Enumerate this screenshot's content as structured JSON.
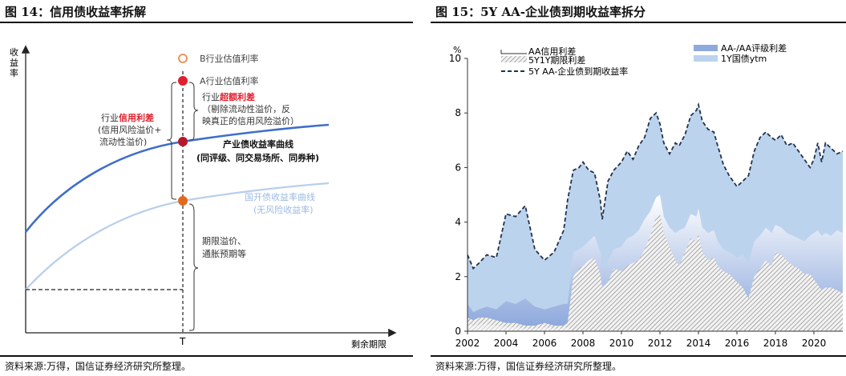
{
  "left": {
    "title": "图 14：信用债收益率拆解",
    "source": "资料来源:万得，国信证券经济研究所整理。",
    "ylabel_chars": [
      "收",
      "益",
      "率"
    ],
    "xlabel": "剩余期限",
    "t_label": "T",
    "legend_b": "B行业估值利率",
    "legend_a": "A行业估值利率",
    "excess_pre": "行业",
    "excess_em": "超额利差",
    "excess_l2": "（剔除流动性溢价，反",
    "excess_l3": "映真正的信用风险溢价）",
    "credit_pre": "行业",
    "credit_em": "信用利差",
    "credit_l2": "(信用风险溢价+",
    "credit_l3": "流动性溢价)",
    "ind_l1": "产业债收益率曲线",
    "ind_l2": "(同评级、同交易场所、同券种)",
    "cdb_l1": "国开债收益率曲线",
    "cdb_l2": "(无风险收益率)",
    "term_l1": "期限溢价、",
    "term_l2": "通胀预期等",
    "colors": {
      "industry": "#3f6fc9",
      "cdb": "#b8cfea",
      "red": "#e0202e",
      "orange": "#e06a1c",
      "darkred": "#b5172b",
      "emph": "#e0202e"
    }
  },
  "right": {
    "title": "图 15：5Y AA-企业债到期收益率拆分",
    "source": "资料来源:万得，国信证券经济研究所整理。",
    "chart_data": {
      "type": "area",
      "title": "5Y AA-企业债到期收益率拆分",
      "ylabel": "%",
      "ylim": [
        0,
        10
      ],
      "xlim": [
        2002,
        2021.5
      ],
      "yticks": [
        "0",
        "2",
        "4",
        "6",
        "8",
        "10"
      ],
      "xticks": [
        "2002",
        "2004",
        "2006",
        "2008",
        "2010",
        "2012",
        "2014",
        "2016",
        "2018",
        "2020"
      ],
      "legend": [
        "AA信用利差",
        "AA-/AA评级利差",
        "5Y1Y期限利差",
        "1Y国债ytm",
        "5Y AA-企业债到期收益率"
      ],
      "x": [
        2002.0,
        2002.3,
        2002.6,
        2003.0,
        2003.5,
        2004.0,
        2004.5,
        2005.0,
        2005.5,
        2006.0,
        2006.5,
        2007.0,
        2007.2,
        2007.5,
        2007.8,
        2008.0,
        2008.3,
        2008.6,
        2008.9,
        2009.0,
        2009.3,
        2009.6,
        2010.0,
        2010.3,
        2010.6,
        2010.9,
        2011.2,
        2011.5,
        2011.8,
        2012.0,
        2012.2,
        2012.5,
        2012.8,
        2013.0,
        2013.3,
        2013.6,
        2013.9,
        2014.0,
        2014.2,
        2014.5,
        2014.8,
        2015.0,
        2015.3,
        2015.6,
        2016.0,
        2016.3,
        2016.6,
        2016.9,
        2017.2,
        2017.5,
        2017.8,
        2018.0,
        2018.3,
        2018.6,
        2018.9,
        2019.2,
        2019.5,
        2019.8,
        2020.0,
        2020.2,
        2020.4,
        2020.6,
        2020.9,
        2021.2,
        2021.5
      ],
      "total": [
        2.8,
        2.3,
        2.5,
        2.8,
        2.7,
        4.3,
        4.2,
        4.6,
        3.0,
        2.6,
        2.9,
        3.7,
        4.8,
        5.9,
        6.0,
        6.2,
        5.9,
        5.8,
        4.8,
        4.1,
        5.5,
        5.9,
        6.2,
        6.6,
        6.3,
        6.8,
        7.1,
        7.8,
        8.0,
        7.6,
        6.9,
        6.5,
        6.9,
        6.8,
        7.2,
        7.9,
        8.1,
        8.3,
        7.7,
        7.4,
        7.3,
        6.8,
        6.1,
        5.7,
        5.3,
        5.5,
        5.7,
        6.6,
        7.1,
        7.3,
        7.1,
        7.0,
        7.2,
        6.8,
        6.9,
        6.6,
        6.3,
        6.0,
        6.3,
        6.9,
        6.2,
        6.9,
        6.7,
        6.5,
        6.6
      ],
      "ytm": [
        0.5,
        0.4,
        0.5,
        0.5,
        0.4,
        0.3,
        0.3,
        0.2,
        0.2,
        0.3,
        0.2,
        0.2,
        0.3,
        2.0,
        2.3,
        2.4,
        2.6,
        2.7,
        2.1,
        1.6,
        1.8,
        2.3,
        2.2,
        2.4,
        2.5,
        2.6,
        3.0,
        3.5,
        4.2,
        4.3,
        3.6,
        3.1,
        2.6,
        2.4,
        2.9,
        3.4,
        3.3,
        3.6,
        2.9,
        2.6,
        2.7,
        2.4,
        2.2,
        2.1,
        1.8,
        1.6,
        1.2,
        2.0,
        2.3,
        2.6,
        2.4,
        2.9,
        2.8,
        2.6,
        2.4,
        2.3,
        2.1,
        2.1,
        1.9,
        1.7,
        1.5,
        1.6,
        1.6,
        1.5,
        1.4
      ],
      "term": [
        1.0,
        0.7,
        0.8,
        0.9,
        0.8,
        1.1,
        1.0,
        1.2,
        0.9,
        0.8,
        0.9,
        1.0,
        1.0,
        2.9,
        3.0,
        3.1,
        3.3,
        3.5,
        2.9,
        2.3,
        2.6,
        3.0,
        3.1,
        3.4,
        3.5,
        3.7,
        4.1,
        4.4,
        4.9,
        5.0,
        4.2,
        3.8,
        3.6,
        3.7,
        3.8,
        4.3,
        4.2,
        4.5,
        3.8,
        3.6,
        3.7,
        3.3,
        3.0,
        2.9,
        2.7,
        2.8,
        2.5,
        3.3,
        3.5,
        3.8,
        3.6,
        3.9,
        3.8,
        3.6,
        3.5,
        3.4,
        3.3,
        3.5,
        3.6,
        3.7,
        3.5,
        3.6,
        3.5,
        3.7,
        3.6
      ],
      "rating_top": [
        2.8,
        2.3,
        2.5,
        2.8,
        2.7,
        4.3,
        4.2,
        4.6,
        3.0,
        2.6,
        2.9,
        3.7,
        4.8,
        5.9,
        6.0,
        6.2,
        5.9,
        5.8,
        4.8,
        4.1,
        5.5,
        5.9,
        6.2,
        6.6,
        6.3,
        6.8,
        7.1,
        7.8,
        8.0,
        7.6,
        6.9,
        6.5,
        6.9,
        6.8,
        7.2,
        7.9,
        8.1,
        8.3,
        7.7,
        7.4,
        7.3,
        6.8,
        6.1,
        5.7,
        5.3,
        5.5,
        5.7,
        6.6,
        7.1,
        7.3,
        7.1,
        7.0,
        7.2,
        6.8,
        6.9,
        6.6,
        6.3,
        6.0,
        6.3,
        6.9,
        6.2,
        6.9,
        6.7,
        6.5,
        6.6
      ],
      "grid": false,
      "legend_position": "top"
    },
    "colors": {
      "ytm": "#bcd3ee",
      "rating": "#a9c2e6",
      "total": "#22324a",
      "axis": "#333333"
    }
  }
}
